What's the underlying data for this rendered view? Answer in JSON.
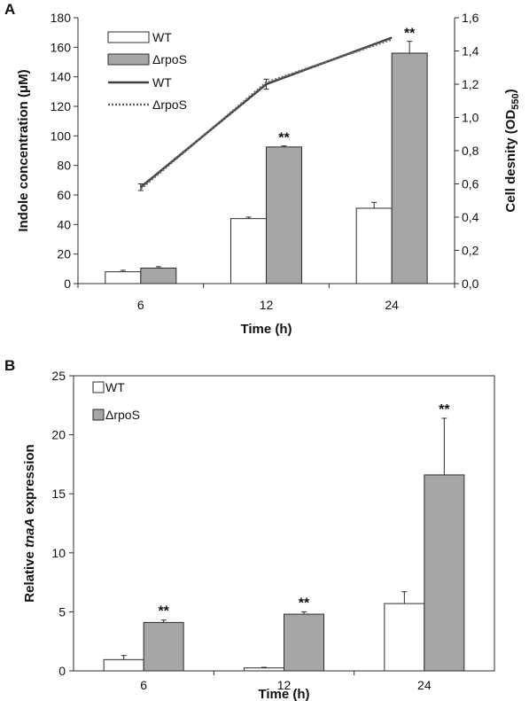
{
  "chart_data": [
    {
      "panel": "A",
      "type": "bar",
      "categories": [
        "6",
        "12",
        "24"
      ],
      "series": [
        {
          "name": "WT",
          "type": "bar",
          "axis": "left",
          "color": "#ffffff",
          "values": [
            8,
            44,
            51
          ],
          "errors": [
            1,
            1,
            4
          ]
        },
        {
          "name": "ΔrpoS",
          "type": "bar",
          "axis": "left",
          "color": "#a6a6a6",
          "values": [
            10.5,
            92.5,
            156
          ],
          "errors": [
            1,
            0.7,
            8
          ]
        },
        {
          "name": "WT",
          "type": "line",
          "axis": "right",
          "color": "#3f3f3f",
          "style": "solid",
          "values": [
            0.58,
            1.2,
            1.48
          ],
          "errors": [
            0.02,
            0.03,
            0.0
          ]
        },
        {
          "name": "ΔrpoS",
          "type": "line",
          "axis": "right",
          "color": "#3f3f3f",
          "style": "dotted",
          "values": [
            0.57,
            1.21,
            1.47
          ],
          "errors": [
            0.0,
            0.0,
            0.0
          ]
        }
      ],
      "significance": [
        "",
        "**",
        "**"
      ],
      "xlabel": "Time (h)",
      "ylabel": "Indole concentration (μM)",
      "ylabel_right": "Cell desnity (OD",
      "ylabel_right_sub": "550",
      "ylabel_right_close": ")",
      "ylim": [
        0,
        180
      ],
      "yticks": [
        "0",
        "20",
        "40",
        "60",
        "80",
        "100",
        "120",
        "140",
        "160",
        "180"
      ],
      "ylim_right": [
        0,
        1.6
      ],
      "yticks_right": [
        "0,0",
        "0,2",
        "0,4",
        "0,6",
        "0,8",
        "1,0",
        "1,2",
        "1,4",
        "1,6"
      ],
      "legend_position": "top-left",
      "grid": false
    },
    {
      "panel": "B",
      "type": "bar",
      "categories": [
        "6",
        "12",
        "24"
      ],
      "series": [
        {
          "name": "WT",
          "color": "#ffffff",
          "values": [
            0.95,
            0.25,
            5.7
          ],
          "errors": [
            0.35,
            0.05,
            1.0
          ]
        },
        {
          "name": "ΔrpoS",
          "color": "#a6a6a6",
          "values": [
            4.1,
            4.8,
            16.6
          ],
          "errors": [
            0.2,
            0.2,
            4.8
          ]
        }
      ],
      "significance": [
        "**",
        "**",
        "**"
      ],
      "xlabel": "Time (h)",
      "ylabel_prefix": "Relative ",
      "ylabel_italic": "tnaA",
      "ylabel_suffix": "  expression",
      "ylim": [
        0,
        25
      ],
      "yticks": [
        "0",
        "5",
        "10",
        "15",
        "20",
        "25"
      ],
      "legend_position": "top-left",
      "grid": false
    }
  ]
}
